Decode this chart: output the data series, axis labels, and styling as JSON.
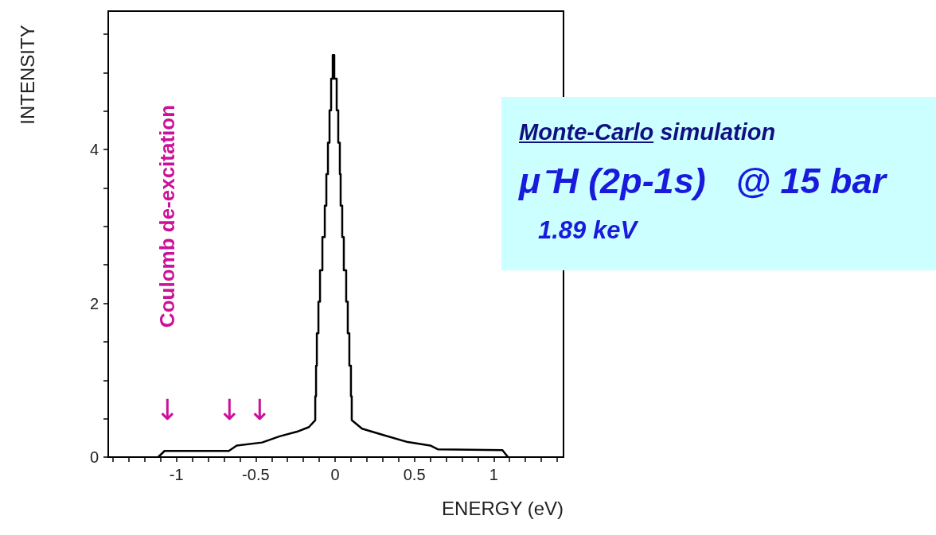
{
  "chart_data": {
    "type": "line",
    "xlabel": "ENERGY (eV)",
    "ylabel": "INTENSITY",
    "xlim": [
      -1.43,
      1.44
    ],
    "ylim": [
      0,
      5.8
    ],
    "xticks": [
      {
        "value": -1.4,
        "label": null
      },
      {
        "value": -1.3,
        "label": null
      },
      {
        "value": -1.2,
        "label": null
      },
      {
        "value": -1.1,
        "label": null
      },
      -1,
      {
        "value": -0.9,
        "label": null
      },
      {
        "value": -0.8,
        "label": null
      },
      {
        "value": -0.7,
        "label": null
      },
      {
        "value": -0.6,
        "label": null
      },
      -0.5,
      {
        "value": -0.4,
        "label": null
      },
      {
        "value": -0.3,
        "label": null
      },
      {
        "value": -0.2,
        "label": null
      },
      {
        "value": -0.1,
        "label": null
      },
      0,
      {
        "value": 0.1,
        "label": null
      },
      {
        "value": 0.2,
        "label": null
      },
      {
        "value": 0.3,
        "label": null
      },
      {
        "value": 0.4,
        "label": null
      },
      0.5,
      {
        "value": 0.6,
        "label": null
      },
      {
        "value": 0.7,
        "label": null
      },
      {
        "value": 0.8,
        "label": null
      },
      {
        "value": 0.9,
        "label": null
      },
      1,
      {
        "value": 1.1,
        "label": null
      },
      {
        "value": 1.2,
        "label": null
      },
      {
        "value": 1.3,
        "label": null
      },
      {
        "value": 1.4,
        "label": null
      }
    ],
    "yticks": [
      0,
      {
        "value": 0.5,
        "label": null
      },
      {
        "value": 1,
        "label": null
      },
      {
        "value": 1.5,
        "label": null
      },
      2,
      {
        "value": 2.5,
        "label": null
      },
      {
        "value": 3,
        "label": null
      },
      {
        "value": 3.5,
        "label": null
      },
      4,
      {
        "value": 4.5,
        "label": null
      },
      {
        "value": 5,
        "label": null
      },
      {
        "value": 5.5,
        "label": null
      }
    ],
    "marker": "none",
    "series": [
      {
        "color": "#000000",
        "x": [
          -1.115,
          -1.075,
          -0.67,
          -0.62,
          -0.46,
          -0.35,
          -0.24,
          -0.165,
          -0.125,
          -0.125,
          -0.12,
          -0.12,
          -0.115,
          -0.115,
          -0.105,
          -0.105,
          -0.095,
          -0.095,
          -0.08,
          -0.08,
          -0.065,
          -0.065,
          -0.055,
          -0.055,
          -0.045,
          -0.045,
          -0.035,
          -0.035,
          -0.025,
          -0.025,
          -0.015,
          -0.015,
          -0.005,
          -0.005,
          0.01,
          0.01,
          0.02,
          0.02,
          0.03,
          0.03,
          0.035,
          0.035,
          0.045,
          0.045,
          0.055,
          0.055,
          0.07,
          0.07,
          0.08,
          0.08,
          0.09,
          0.09,
          0.1,
          0.1,
          0.105,
          0.105,
          0.17,
          0.3,
          0.45,
          0.6,
          0.65,
          1.055,
          1.09
        ],
        "values": [
          0,
          0.08,
          0.08,
          0.15,
          0.19,
          0.27,
          0.33,
          0.39,
          0.48,
          0.79,
          0.79,
          1.19,
          1.19,
          1.61,
          1.61,
          2.02,
          2.02,
          2.43,
          2.43,
          2.86,
          2.86,
          3.27,
          3.27,
          3.68,
          3.68,
          4.09,
          4.09,
          4.51,
          4.51,
          4.92,
          4.92,
          5.23,
          5.23,
          4.92,
          4.92,
          4.51,
          4.51,
          4.09,
          4.09,
          3.68,
          3.68,
          3.27,
          3.27,
          2.86,
          2.86,
          2.43,
          2.43,
          2.02,
          2.02,
          1.61,
          1.61,
          1.19,
          1.19,
          0.79,
          0.79,
          0.48,
          0.37,
          0.29,
          0.2,
          0.15,
          0.1,
          0.09,
          0
        ]
      }
    ],
    "annotations": [
      "Coulomb de-excitation",
      "↓",
      "↓",
      "↓",
      "Monte-Carlo simulation",
      "μ⁻H (2p-1s)   @ 15 bar",
      "1.89 keV"
    ]
  }
}
